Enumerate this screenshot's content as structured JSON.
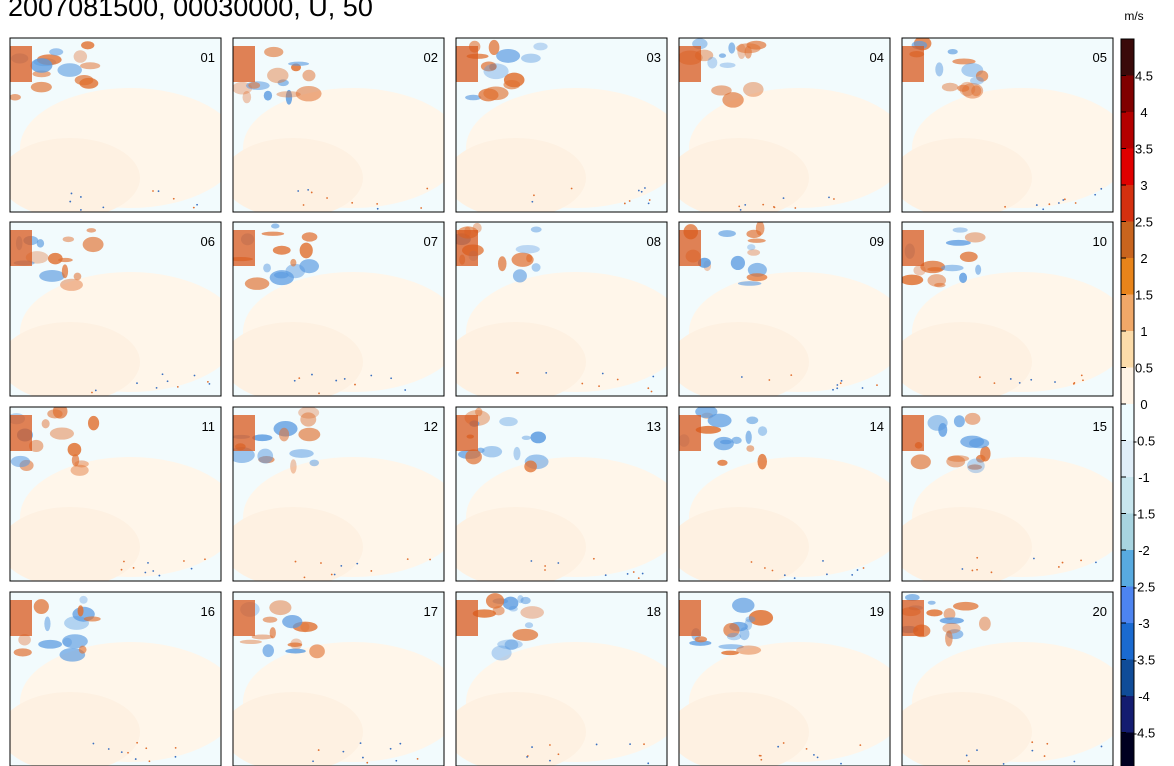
{
  "title": "2007081500, 00030000, U, 50",
  "unit": "m/s",
  "panels": [
    "01",
    "02",
    "03",
    "04",
    "05",
    "06",
    "07",
    "08",
    "09",
    "10",
    "11",
    "12",
    "13",
    "14",
    "15",
    "16",
    "17",
    "18",
    "19",
    "20"
  ],
  "colorbar": {
    "ticks": [
      4.5,
      4,
      3.5,
      3,
      2.5,
      2,
      1.5,
      1,
      0.5,
      0,
      -0.5,
      -1,
      -1.5,
      -2,
      -2.5,
      -3,
      -3.5,
      -4,
      -4.5
    ],
    "colors": [
      "#3a0a0a",
      "#800000",
      "#b40000",
      "#e00000",
      "#d43010",
      "#c8641e",
      "#e8841a",
      "#f0a868",
      "#fcdcaa",
      "#fff4e6",
      "#eefcff",
      "#e0eef8",
      "#c8e6ee",
      "#a8d4e0",
      "#58aae0",
      "#4d84f0",
      "#1a6ad0",
      "#104c98",
      "#141c70",
      "#000020"
    ]
  }
}
